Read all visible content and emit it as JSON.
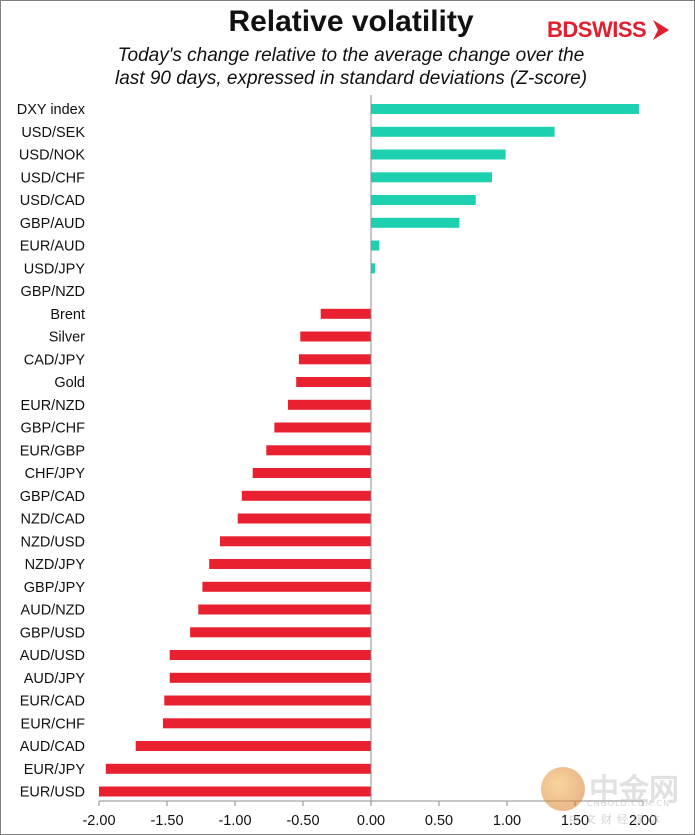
{
  "chart_data": {
    "type": "bar",
    "orientation": "horizontal",
    "title": "Relative volatility",
    "subtitle_line1": "Today's change relative to the  average change over the",
    "subtitle_line2": "last 90 days, expressed in standard deviations (Z-score)",
    "xlabel": "",
    "ylabel": "",
    "xlim": [
      -2.0,
      2.0
    ],
    "ticks": [
      -2.0,
      -1.5,
      -1.0,
      -0.5,
      0.0,
      0.5,
      1.0,
      1.5,
      2.0
    ],
    "tick_labels": [
      "-2.00",
      "-1.50",
      "-1.00",
      "-0.50",
      "0.00",
      "0.50",
      "1.00",
      "1.50",
      "2.00"
    ],
    "categories": [
      "DXY index",
      "USD/SEK",
      "USD/NOK",
      "USD/CHF",
      "USD/CAD",
      "GBP/AUD",
      "EUR/AUD",
      "USD/JPY",
      "GBP/NZD",
      "Brent",
      "Silver",
      "CAD/JPY",
      "Gold",
      "EUR/NZD",
      "GBP/CHF",
      "EUR/GBP",
      "CHF/JPY",
      "GBP/CAD",
      "NZD/CAD",
      "NZD/USD",
      "NZD/JPY",
      "GBP/JPY",
      "AUD/NZD",
      "GBP/USD",
      "AUD/USD",
      "AUD/JPY",
      "EUR/CAD",
      "EUR/CHF",
      "AUD/CAD",
      "EUR/JPY",
      "EUR/USD"
    ],
    "values": [
      1.97,
      1.35,
      0.99,
      0.89,
      0.77,
      0.65,
      0.06,
      0.03,
      0.0,
      -0.37,
      -0.52,
      -0.53,
      -0.55,
      -0.61,
      -0.71,
      -0.77,
      -0.87,
      -0.95,
      -0.98,
      -1.11,
      -1.19,
      -1.24,
      -1.27,
      -1.33,
      -1.48,
      -1.48,
      -1.52,
      -1.53,
      -1.73,
      -1.95,
      -2.0
    ],
    "positive_color": "#1dd1b0",
    "negative_color": "#e8202f"
  },
  "brand": {
    "logo_text": "BDSWISS",
    "logo_color": "#e0202e"
  },
  "watermark": {
    "name": "中金网",
    "url": "CNGOLD.COM.CN",
    "tagline": "中文财经媒体"
  }
}
